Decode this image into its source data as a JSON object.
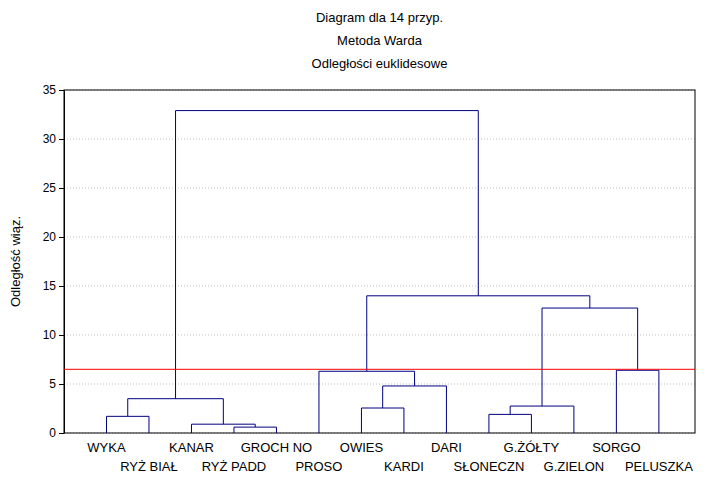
{
  "chart_data": {
    "type": "dendrogram",
    "title": "Diagram dla 14 przyp.",
    "subtitle": [
      "Metoda Warda",
      "Odległości euklidesowe"
    ],
    "ylabel": "Odległość wiąz.",
    "categories": [
      "WYKA",
      "RYŻ BIAŁ",
      "KANAR",
      "RYŻ PADD",
      "GROCH NO",
      "PROSO",
      "OWIES",
      "KARDI",
      "DARI",
      "SŁONECZN",
      "G.ŻÓŁTY",
      "G.ZIELON",
      "SORGO",
      "PELUSZKA"
    ],
    "merges": [
      {
        "children": [
          0,
          1
        ],
        "height": 1.7
      },
      {
        "children": [
          3,
          4
        ],
        "height": 0.6
      },
      {
        "children": [
          2,
          15
        ],
        "height": 0.9
      },
      {
        "children": [
          14,
          16
        ],
        "height": 3.5
      },
      {
        "children": [
          6,
          7
        ],
        "height": 2.55
      },
      {
        "children": [
          18,
          8
        ],
        "height": 4.8
      },
      {
        "children": [
          5,
          19
        ],
        "height": 6.3
      },
      {
        "children": [
          9,
          10
        ],
        "height": 1.9
      },
      {
        "children": [
          21,
          11
        ],
        "height": 2.75
      },
      {
        "children": [
          12,
          13
        ],
        "height": 6.4
      },
      {
        "children": [
          22,
          23
        ],
        "height": 12.75
      },
      {
        "children": [
          20,
          24
        ],
        "height": 14.0
      },
      {
        "children": [
          17,
          25
        ],
        "height": 32.9
      }
    ],
    "color": "#000080",
    "cut_line": {
      "value": 6.5,
      "color": "#ff0000"
    },
    "ylim": [
      0,
      35
    ],
    "yticks": [
      0,
      5,
      10,
      15,
      20,
      25,
      30,
      35
    ],
    "grid": true
  }
}
